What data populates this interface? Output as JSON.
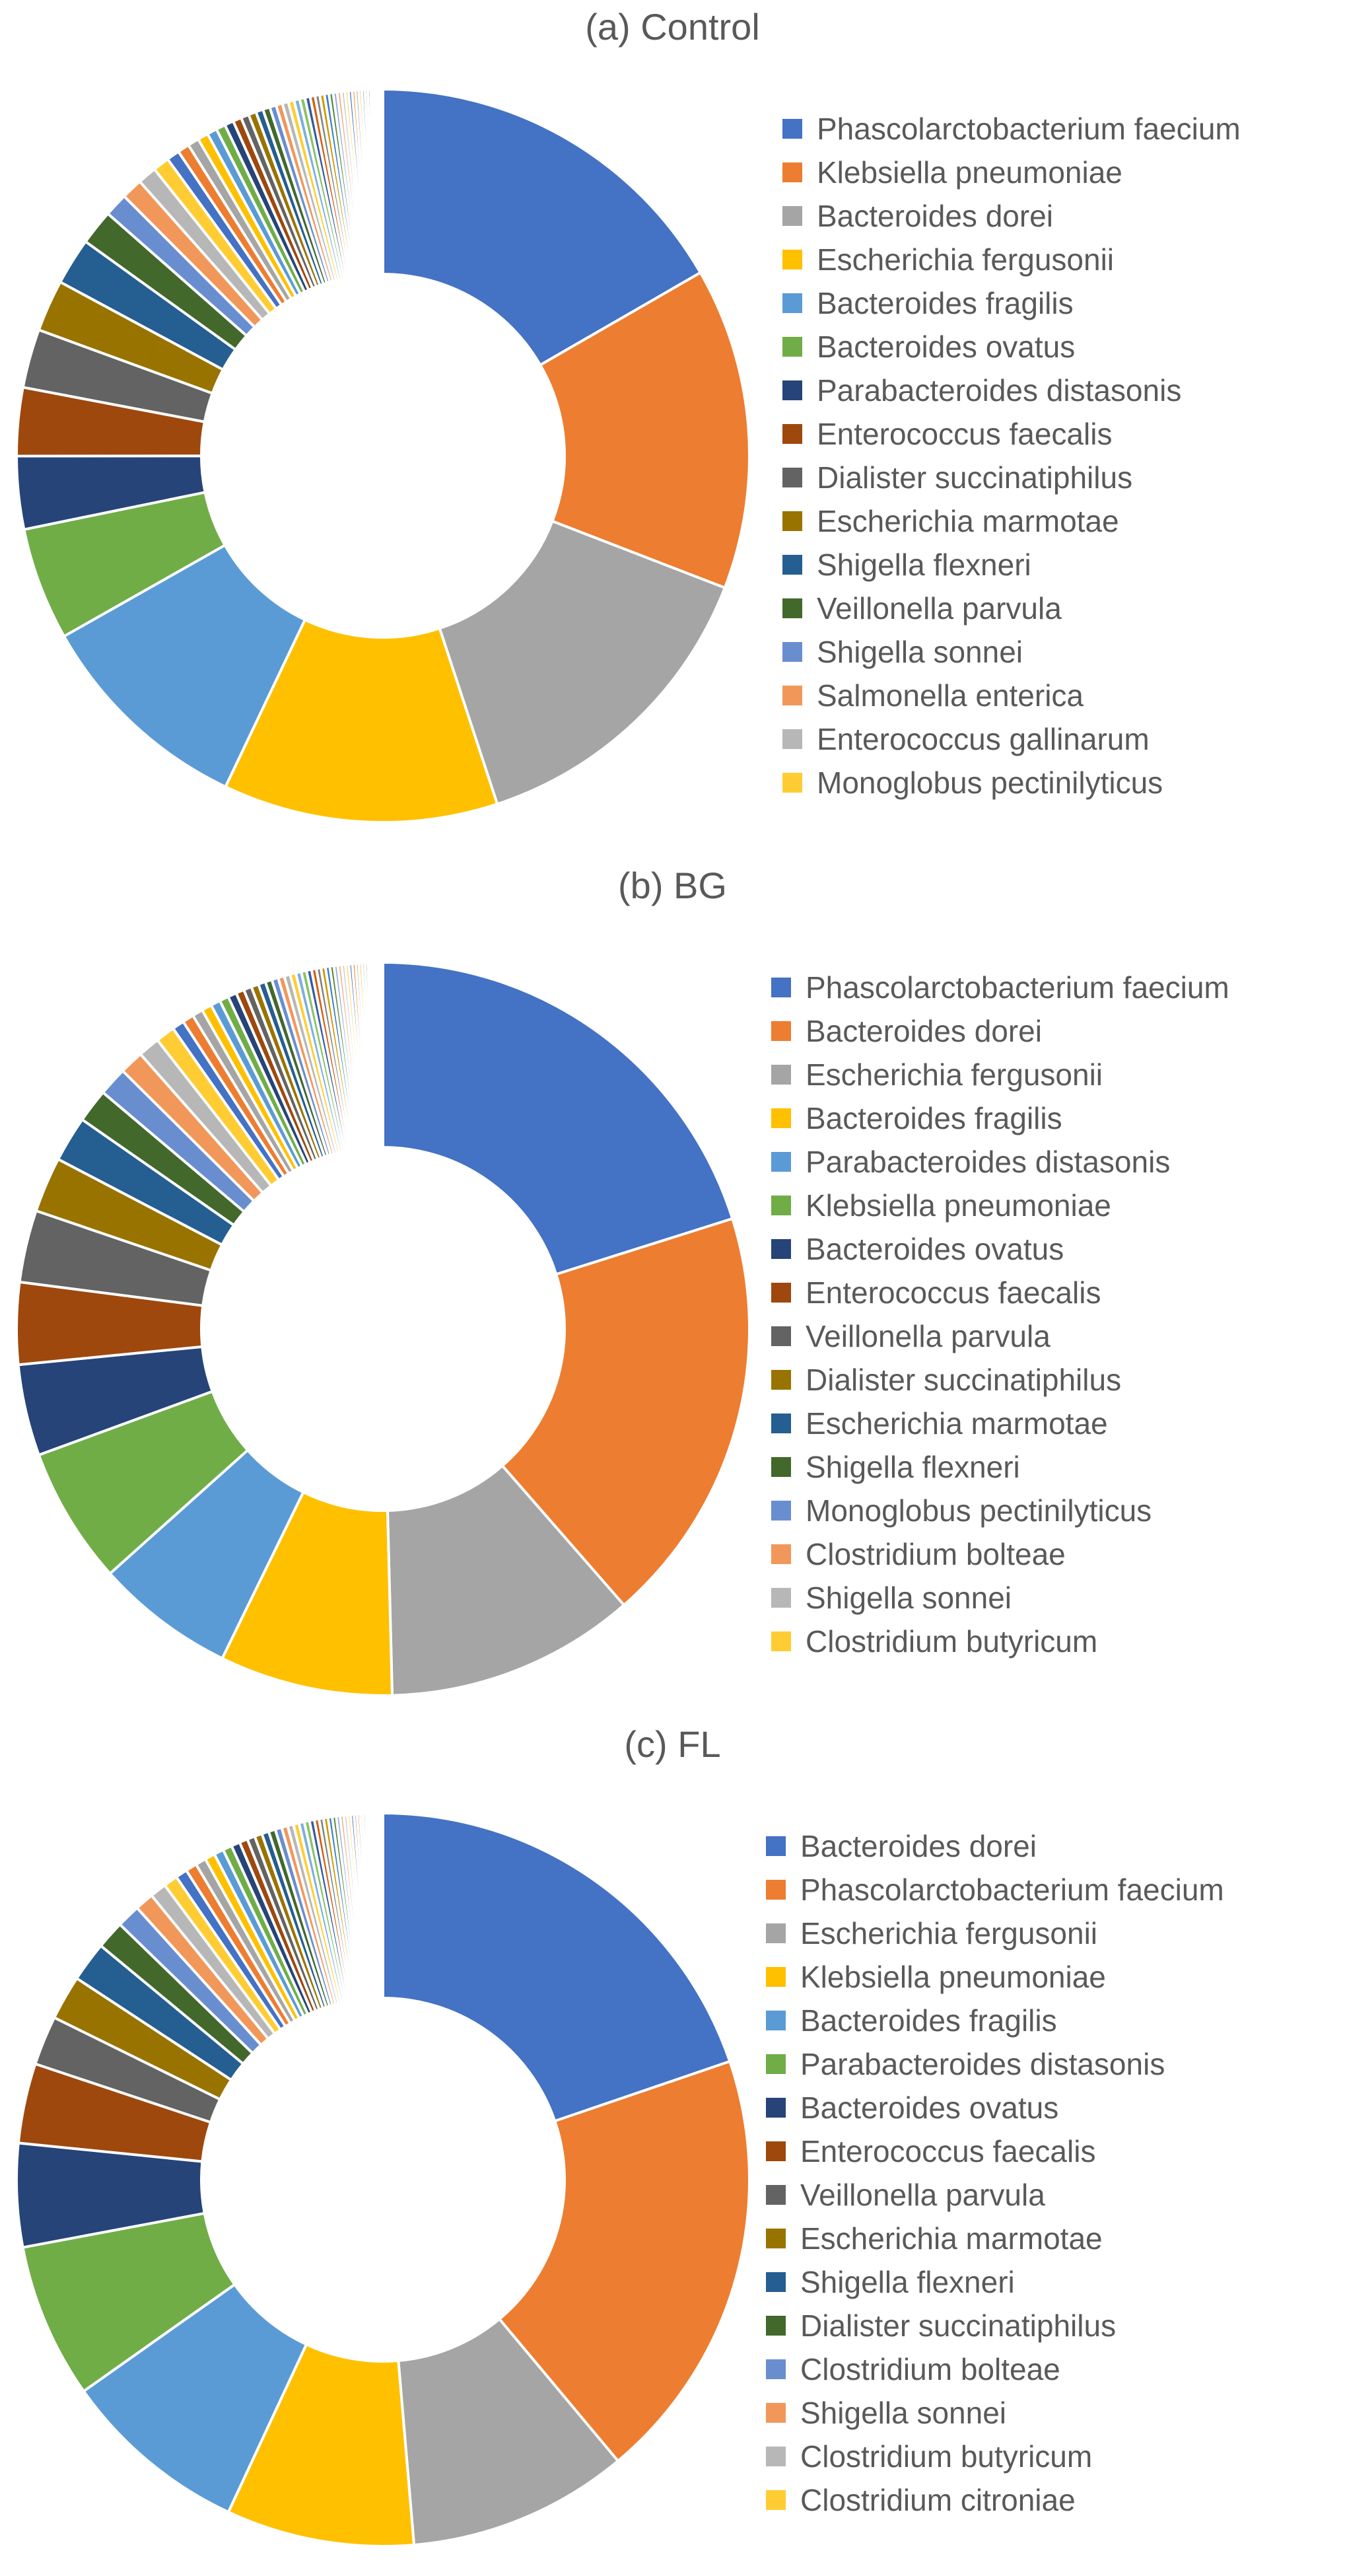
{
  "palette": [
    "#4472C4",
    "#ED7D31",
    "#A5A5A5",
    "#FFC000",
    "#5B9BD5",
    "#70AD47",
    "#264478",
    "#9E480E",
    "#636363",
    "#997300",
    "#255E91",
    "#43682B",
    "#698ED0",
    "#F1975A",
    "#B7B7B7",
    "#FFCD33"
  ],
  "tail_palette": [
    "#4472C4",
    "#ED7D31",
    "#A5A5A5",
    "#FFC000",
    "#5B9BD5",
    "#70AD47",
    "#264478",
    "#9E480E",
    "#636363",
    "#997300",
    "#255E91",
    "#43682B",
    "#698ED0",
    "#F1975A",
    "#B7B7B7",
    "#FFCD33",
    "#7CAFDD",
    "#8CC168",
    "#335AA1",
    "#D26012",
    "#848484",
    "#CC9A00",
    "#3C7DC4",
    "#5A8A39",
    "#8FAADC",
    "#F4B183",
    "#C9C9C9",
    "#FFD966"
  ],
  "chart_data": [
    {
      "type": "pie",
      "donut": true,
      "title": "(a) Control",
      "categories": [
        "Phascolarctobacterium faecium",
        "Klebsiella pneumoniae",
        "Bacteroides dorei",
        "Escherichia fergusonii",
        "Bacteroides fragilis",
        "Bacteroides ovatus",
        "Parabacteroides distasonis",
        "Enterococcus faecalis",
        "Dialister succinatiphilus",
        "Escherichia marmotae",
        "Shigella flexneri",
        "Veillonella parvula",
        "Shigella sonnei",
        "Salmonella enterica",
        "Enterococcus gallinarum",
        "Monoglobus pectinilyticus"
      ],
      "values": [
        16.1,
        13.7,
        13.6,
        11.7,
        9.4,
        4.8,
        3.1,
        2.9,
        2.5,
        2.2,
        2.0,
        1.5,
        1.0,
        0.9,
        0.8,
        0.7
      ],
      "other_taxa_values": [
        0.55,
        0.5,
        0.48,
        0.45,
        0.42,
        0.4,
        0.38,
        0.36,
        0.34,
        0.33,
        0.31,
        0.3,
        0.28,
        0.27,
        0.26,
        0.25,
        0.24,
        0.23,
        0.22,
        0.21,
        0.2,
        0.2,
        0.19,
        0.18,
        0.17,
        0.17,
        0.16,
        0.15,
        0.15,
        0.14,
        0.14,
        0.13,
        0.13,
        0.12,
        0.12,
        0.11,
        0.11,
        0.1,
        0.1,
        0.1
      ]
    },
    {
      "type": "pie",
      "donut": true,
      "title": "(b) BG",
      "categories": [
        "Phascolarctobacterium faecium",
        "Bacteroides dorei",
        "Escherichia fergusonii",
        "Bacteroides fragilis",
        "Parabacteroides distasonis",
        "Klebsiella pneumoniae",
        "Bacteroides ovatus",
        "Enterococcus faecalis",
        "Veillonella parvula",
        "Dialister succinatiphilus",
        "Escherichia marmotae",
        "Shigella flexneri",
        "Monoglobus pectinilyticus",
        "Clostridium bolteae",
        "Shigella sonnei",
        "Clostridium butyricum"
      ],
      "values": [
        19.0,
        17.4,
        10.4,
        7.2,
        5.8,
        5.7,
        3.8,
        3.4,
        3.0,
        2.3,
        1.9,
        1.4,
        1.2,
        1.0,
        0.9,
        0.8
      ],
      "other_taxa_values": [
        0.5,
        0.47,
        0.44,
        0.42,
        0.4,
        0.38,
        0.36,
        0.34,
        0.33,
        0.31,
        0.3,
        0.28,
        0.27,
        0.26,
        0.25,
        0.24,
        0.23,
        0.22,
        0.21,
        0.2,
        0.19,
        0.19,
        0.18,
        0.17,
        0.16,
        0.16,
        0.15,
        0.15,
        0.14,
        0.14,
        0.13,
        0.13,
        0.12,
        0.12,
        0.11,
        0.11,
        0.1,
        0.1,
        0.1,
        0.1
      ]
    },
    {
      "type": "pie",
      "donut": true,
      "title": "(c) FL",
      "categories": [
        "Bacteroides dorei",
        "Phascolarctobacterium faecium",
        "Escherichia fergusonii",
        "Klebsiella pneumoniae",
        "Bacteroides fragilis",
        "Parabacteroides distasonis",
        "Bacteroides ovatus",
        "Enterococcus faecalis",
        "Veillonella parvula",
        "Escherichia marmotae",
        "Shigella flexneri",
        "Dialister succinatiphilus",
        "Clostridium bolteae",
        "Shigella sonnei",
        "Clostridium butyricum",
        "Clostridium citroniae"
      ],
      "values": [
        19.1,
        18.5,
        9.4,
        8.0,
        8.0,
        6.6,
        4.4,
        3.4,
        2.1,
        1.9,
        1.7,
        1.2,
        1.0,
        0.8,
        0.7,
        0.6
      ],
      "other_taxa_values": [
        0.5,
        0.48,
        0.45,
        0.43,
        0.41,
        0.39,
        0.37,
        0.35,
        0.33,
        0.32,
        0.3,
        0.29,
        0.28,
        0.26,
        0.25,
        0.24,
        0.23,
        0.22,
        0.21,
        0.2,
        0.19,
        0.19,
        0.18,
        0.17,
        0.16,
        0.16,
        0.15,
        0.14,
        0.14,
        0.13,
        0.13,
        0.12,
        0.12,
        0.11,
        0.11,
        0.1,
        0.1,
        0.1,
        0.1,
        0.1
      ]
    }
  ]
}
